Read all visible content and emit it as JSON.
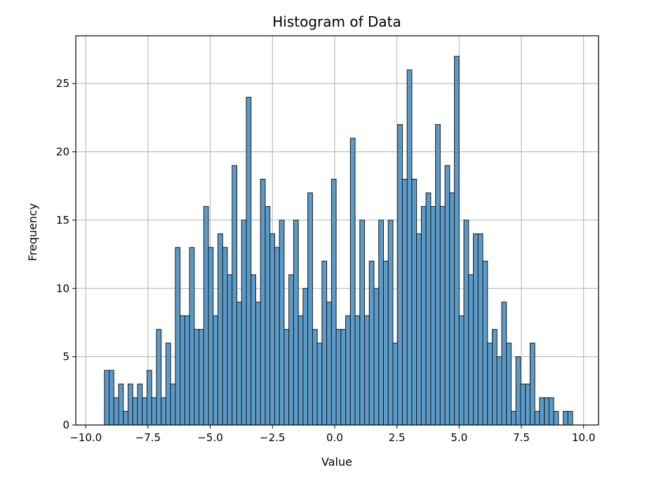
{
  "chart_data": {
    "type": "bar",
    "title": "Histogram of Data",
    "xlabel": "Value",
    "ylabel": "Frequency",
    "bin_start": -9.25,
    "bin_width": 0.19,
    "counts": [
      4,
      4,
      2,
      3,
      1,
      3,
      2,
      3,
      2,
      4,
      2,
      7,
      2,
      6,
      3,
      13,
      8,
      8,
      13,
      7,
      7,
      16,
      13,
      8,
      14,
      13,
      11,
      19,
      9,
      15,
      24,
      11,
      9,
      18,
      16,
      14,
      13,
      15,
      7,
      11,
      15,
      8,
      10,
      17,
      7,
      6,
      12,
      9,
      18,
      7,
      7,
      8,
      21,
      8,
      15,
      8,
      12,
      10,
      15,
      12,
      15,
      6,
      22,
      18,
      26,
      18,
      14,
      16,
      17,
      16,
      22,
      16,
      19,
      17,
      27,
      8,
      15,
      11,
      14,
      14,
      12,
      6,
      7,
      5,
      9,
      6,
      1,
      5,
      3,
      3,
      6,
      1,
      2,
      2,
      2,
      1,
      0,
      1,
      1
    ],
    "xlim": [
      -10.4,
      10.6
    ],
    "ylim": [
      0,
      28.5
    ],
    "xticks": [
      -10.0,
      -7.5,
      -5.0,
      -2.5,
      0.0,
      2.5,
      5.0,
      7.5,
      10.0
    ],
    "xtick_labels": [
      "−10.0",
      "−7.5",
      "−5.0",
      "−2.5",
      "0.0",
      "2.5",
      "5.0",
      "7.5",
      "10.0"
    ],
    "yticks": [
      0,
      5,
      10,
      15,
      20,
      25
    ],
    "ytick_labels": [
      "0",
      "5",
      "10",
      "15",
      "20",
      "25"
    ],
    "grid": true,
    "colors": {
      "bar_fill": "#5b9bc9",
      "bar_edge": "#1a1a1a",
      "grid": "#b0b0b0"
    }
  }
}
